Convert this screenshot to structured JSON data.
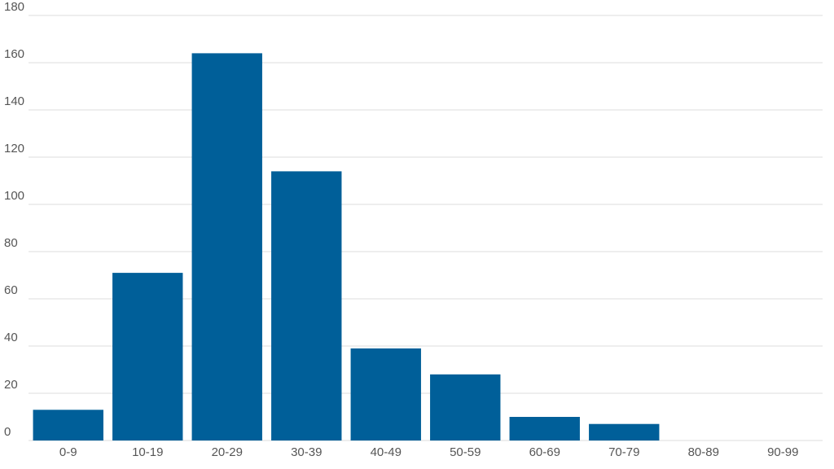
{
  "chart_data": {
    "type": "bar",
    "categories": [
      "0-9",
      "10-19",
      "20-29",
      "30-39",
      "40-49",
      "50-59",
      "60-69",
      "70-79",
      "80-89",
      "90-99"
    ],
    "values": [
      13,
      71,
      164,
      114,
      39,
      28,
      10,
      7,
      0,
      0
    ],
    "color": "#005f99",
    "ylim": [
      0,
      180
    ],
    "yticks": [
      0,
      20,
      40,
      60,
      80,
      100,
      120,
      140,
      160,
      180
    ],
    "grid": true
  }
}
